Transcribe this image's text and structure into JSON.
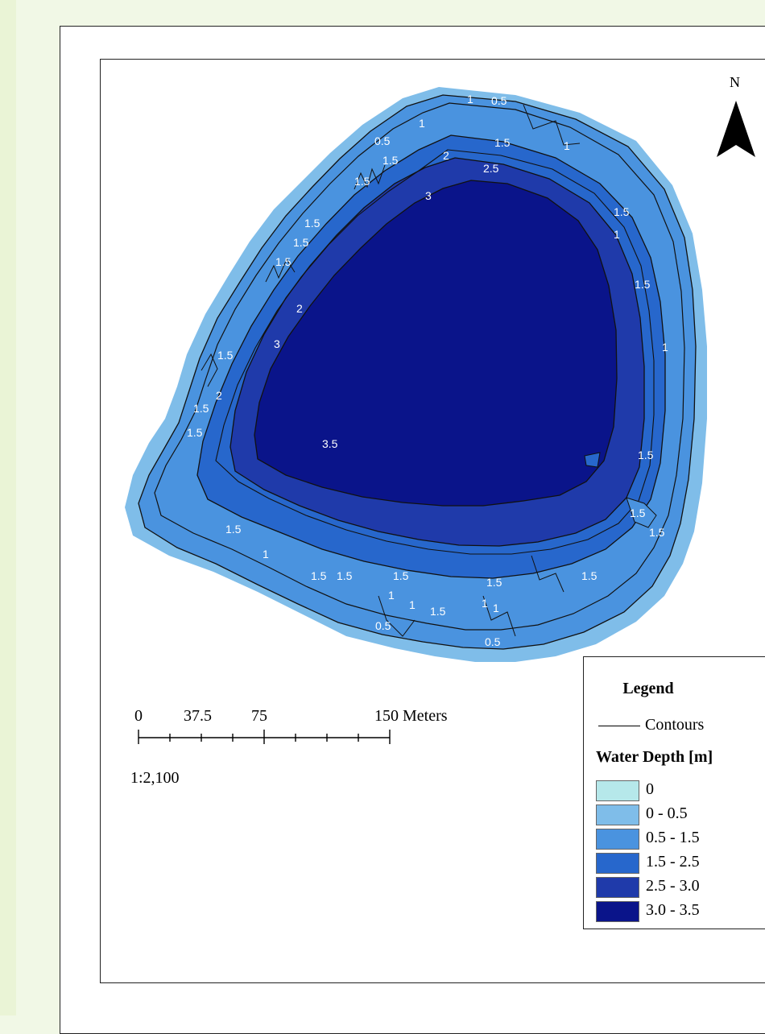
{
  "map": {
    "north_label": "N",
    "contour_labels": [
      "0.5",
      "1",
      "1.5",
      "2",
      "2.5",
      "3",
      "3.5"
    ],
    "depth_classes": [
      {
        "label": "0",
        "color": "#b6e8ea"
      },
      {
        "label": "0 - 0.5",
        "color": "#7fbde9"
      },
      {
        "label": "0.5 - 1.5",
        "color": "#4a93df"
      },
      {
        "label": "1.5 - 2.5",
        "color": "#2767cc"
      },
      {
        "label": "2.5 - 3.0",
        "color": "#1f3aaa"
      },
      {
        "label": "3.0 - 3.5",
        "color": "#0a148a"
      }
    ],
    "contour_color": "#111111"
  },
  "scale_bar": {
    "ticks": [
      "0",
      "37.5",
      "75",
      "150 Meters"
    ],
    "ratio": "1:2,100"
  },
  "legend": {
    "title": "Legend",
    "contours_label": "Contours",
    "subtitle": "Water Depth [m]"
  }
}
